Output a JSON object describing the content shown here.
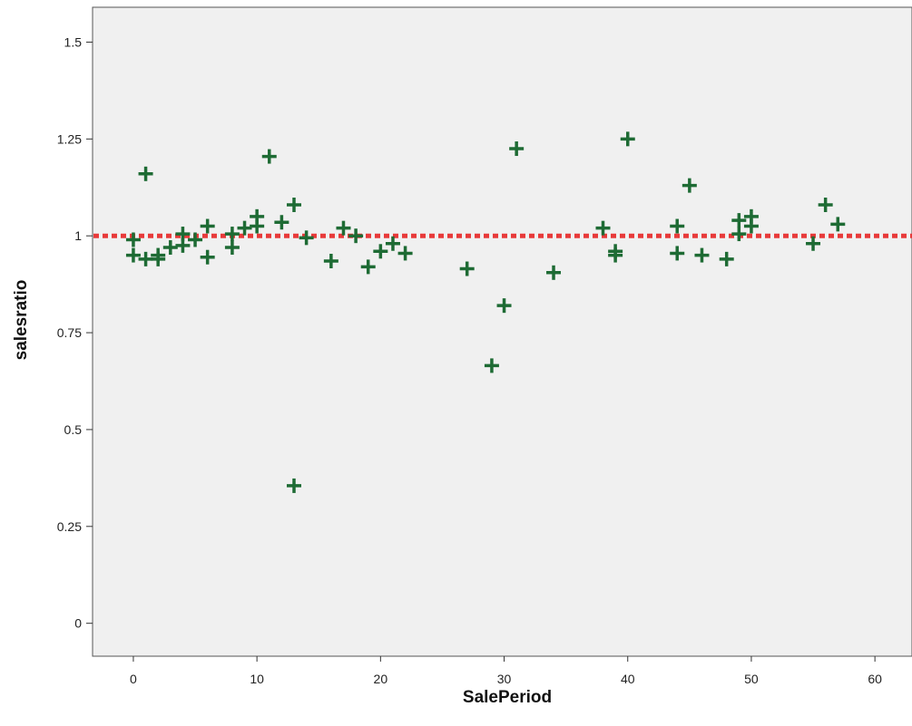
{
  "chart_data": {
    "type": "scatter",
    "title": "",
    "xlabel": "SalePeriod",
    "ylabel": "salesratio",
    "xlim": [
      -3.3,
      63
    ],
    "ylim": [
      -0.085,
      1.59
    ],
    "x_ticks": [
      0,
      10,
      20,
      30,
      40,
      50,
      60
    ],
    "y_ticks": [
      0,
      0.25,
      0.5,
      0.75,
      1,
      1.25,
      1.5
    ],
    "x_tick_labels": [
      "0",
      "10",
      "20",
      "30",
      "40",
      "50",
      "60"
    ],
    "y_tick_labels": [
      "0",
      "0.25",
      "0.5",
      "0.75",
      "1",
      "1.25",
      "1.5"
    ],
    "grid": false,
    "reference_line": {
      "y": 1.0,
      "style": "dotted",
      "color": "#e83a3a"
    },
    "colors": {
      "plot_background": "#f0f0f0",
      "marker": "#1e6b34",
      "reference": "#e83a3a"
    },
    "marker": "plus",
    "series": [
      {
        "points": [
          [
            0,
            0.99
          ],
          [
            0,
            0.95
          ],
          [
            1,
            1.16
          ],
          [
            1,
            0.94
          ],
          [
            2,
            0.94
          ],
          [
            2,
            0.95
          ],
          [
            3,
            0.97
          ],
          [
            4,
            0.975
          ],
          [
            4,
            1.005
          ],
          [
            5,
            0.99
          ],
          [
            6,
            1.025
          ],
          [
            6,
            0.945
          ],
          [
            8,
            0.97
          ],
          [
            8,
            1.005
          ],
          [
            9,
            1.02
          ],
          [
            10,
            1.025
          ],
          [
            10,
            1.05
          ],
          [
            11,
            1.205
          ],
          [
            12,
            1.035
          ],
          [
            13,
            1.08
          ],
          [
            13,
            0.355
          ],
          [
            14,
            0.995
          ],
          [
            16,
            0.935
          ],
          [
            17,
            1.02
          ],
          [
            18,
            1.0
          ],
          [
            19,
            0.92
          ],
          [
            20,
            0.96
          ],
          [
            21,
            0.98
          ],
          [
            22,
            0.955
          ],
          [
            27,
            0.915
          ],
          [
            29,
            0.665
          ],
          [
            30,
            0.82
          ],
          [
            31,
            1.225
          ],
          [
            34,
            0.905
          ],
          [
            38,
            1.02
          ],
          [
            39,
            0.96
          ],
          [
            39,
            0.95
          ],
          [
            40,
            1.25
          ],
          [
            44,
            1.025
          ],
          [
            44,
            0.955
          ],
          [
            45,
            1.13
          ],
          [
            46,
            0.95
          ],
          [
            48,
            0.94
          ],
          [
            49,
            1.005
          ],
          [
            49,
            1.04
          ],
          [
            50,
            1.05
          ],
          [
            50,
            1.025
          ],
          [
            55,
            0.98
          ],
          [
            56,
            1.08
          ],
          [
            57,
            1.03
          ]
        ]
      }
    ]
  }
}
